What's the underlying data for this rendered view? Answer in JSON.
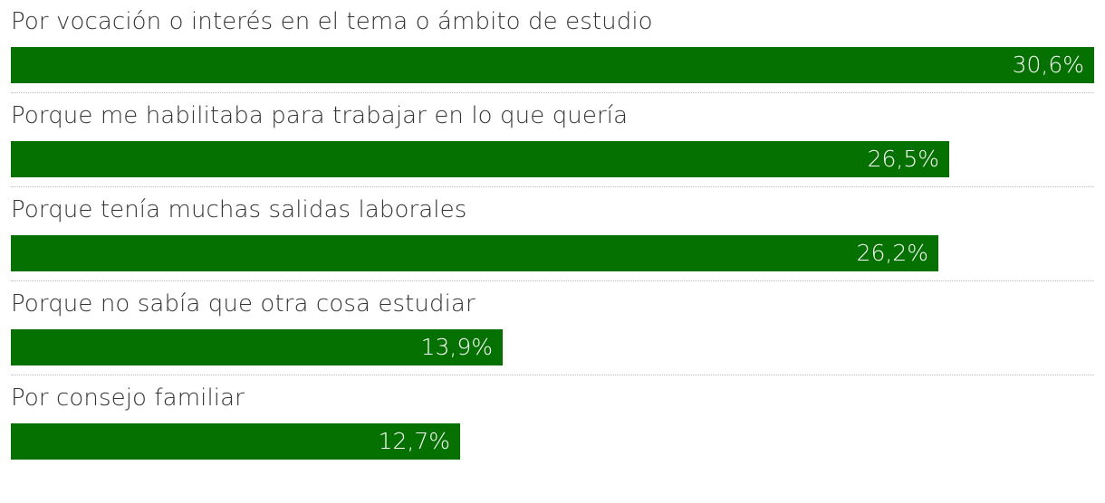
{
  "chart_data": {
    "type": "bar",
    "orientation": "horizontal",
    "categories": [
      "Por vocación o interés en el tema o ámbito de estudio",
      "Porque me habilitaba para trabajar en lo que quería",
      "Porque tenía muchas salidas laborales",
      "Porque no sabía que otra cosa estudiar",
      "Por consejo familiar"
    ],
    "values": [
      30.6,
      26.5,
      26.2,
      13.9,
      12.7
    ],
    "value_labels": [
      "30,6%",
      "26,5%",
      "26,2%",
      "13,9%",
      "12,7%"
    ],
    "xlim": [
      0,
      30.6
    ],
    "bar_color": "#057100",
    "grid": false,
    "legend": "none"
  }
}
